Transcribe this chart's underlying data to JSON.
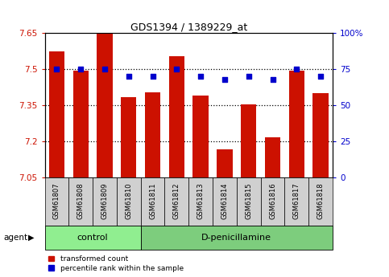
{
  "title": "GDS1394 / 1389229_at",
  "samples": [
    "GSM61807",
    "GSM61808",
    "GSM61809",
    "GSM61810",
    "GSM61811",
    "GSM61812",
    "GSM61813",
    "GSM61814",
    "GSM61815",
    "GSM61816",
    "GSM61817",
    "GSM61818"
  ],
  "bar_values": [
    7.575,
    7.495,
    7.648,
    7.385,
    7.405,
    7.555,
    7.39,
    7.165,
    7.355,
    7.215,
    7.495,
    7.4
  ],
  "percentile_values": [
    75,
    75,
    75,
    70,
    70,
    75,
    70,
    68,
    70,
    68,
    75,
    70
  ],
  "ylim_left": [
    7.05,
    7.65
  ],
  "ylim_right": [
    0,
    100
  ],
  "yticks_left": [
    7.05,
    7.2,
    7.35,
    7.5,
    7.65
  ],
  "yticks_right": [
    0,
    25,
    50,
    75,
    100
  ],
  "ytick_labels_left": [
    "7.05",
    "7.2",
    "7.35",
    "7.5",
    "7.65"
  ],
  "ytick_labels_right": [
    "0",
    "25",
    "50",
    "75",
    "100%"
  ],
  "hlines": [
    7.5,
    7.35,
    7.2
  ],
  "bar_color": "#cc1100",
  "dot_color": "#0000cc",
  "bar_width": 0.65,
  "control_samples": 4,
  "control_label": "control",
  "treatment_label": "D-penicillamine",
  "agent_label": "agent",
  "legend_bar_label": "transformed count",
  "legend_dot_label": "percentile rank within the sample",
  "control_color": "#90ee90",
  "treatment_color": "#7dcd7d",
  "sample_box_color": "#d0d0d0",
  "background_color": "#ffffff"
}
